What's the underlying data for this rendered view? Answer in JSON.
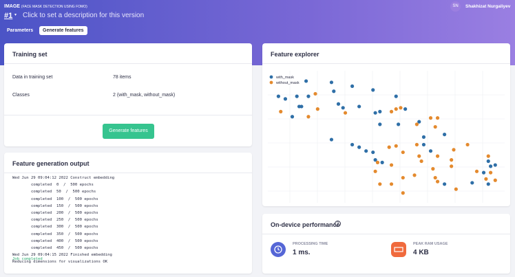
{
  "header": {
    "project": "IMAGE",
    "project_note": "(FACE MASK DETECTION USING FOMO)",
    "version": "#1",
    "description": "Click to set a description for this version",
    "user_initials": "SN",
    "user_name": "Shakhizat Nurgaliyev"
  },
  "tabs": [
    "Parameters",
    "Generate features"
  ],
  "training_set": {
    "title": "Training set",
    "rows": [
      [
        "Data in training set",
        "78 items"
      ],
      [
        "Classes",
        "2 (with_mask, without_mask)"
      ]
    ],
    "button": "Generate features"
  },
  "output": {
    "title": "Feature generation output",
    "lines": [
      "Wed Jun 29 09:04:12 2022 Construct embedding",
      "        completed  0  /  500 epochs",
      "        completed  50  /  500 epochs",
      "        completed  100  /  500 epochs",
      "        completed  150  /  500 epochs",
      "        completed  200  /  500 epochs",
      "        completed  250  /  500 epochs",
      "        completed  300  /  500 epochs",
      "        completed  350  /  500 epochs",
      "        completed  400  /  500 epochs",
      "        completed  450  /  500 epochs",
      "Wed Jun 29 09:04:15 2022 Finished embedding",
      "Reducing dimensions for visualizations OK"
    ],
    "status": "Job completed"
  },
  "feature_explorer": {
    "title": "Feature explorer",
    "chart_data": {
      "type": "scatter",
      "xlim": [
        0,
        100
      ],
      "ylim": [
        0,
        100
      ],
      "series": [
        {
          "name": "with_mask",
          "color": "#2f6fa7",
          "x": [
            16,
            27,
            28,
            36,
            45,
            4,
            7,
            12,
            17,
            13,
            14,
            10,
            30,
            32,
            39,
            46,
            48,
            55,
            59,
            48,
            56,
            65,
            67,
            67,
            70,
            76,
            27,
            36,
            39,
            42,
            46,
            49,
            45,
            95,
            96,
            98,
            93,
            88,
            95,
            76
          ],
          "y": [
            93,
            92,
            85,
            89,
            86,
            81,
            79,
            81,
            81,
            73,
            73,
            65,
            75,
            72,
            73,
            68,
            69,
            81,
            71,
            59,
            59,
            61,
            49,
            43,
            38,
            51,
            47,
            43,
            41,
            38,
            31,
            29,
            37,
            30,
            26,
            27,
            21,
            13,
            12,
            12
          ]
        },
        {
          "name": "without_mask",
          "color": "#e48a2e",
          "x": [
            20,
            21,
            5,
            17,
            33,
            53,
            55,
            57,
            64,
            70,
            73,
            72,
            64,
            52,
            55,
            86,
            80,
            95,
            65,
            66,
            73,
            79,
            79,
            53,
            58,
            47,
            46,
            71,
            72,
            90,
            98,
            96,
            73,
            48,
            53,
            58,
            63,
            58,
            81,
            94
          ],
          "y": [
            83,
            71,
            69,
            65,
            68,
            69,
            71,
            72,
            59,
            64,
            64,
            57,
            43,
            41,
            42,
            43,
            39,
            34,
            34,
            30,
            34,
            31,
            26,
            27,
            37,
            29,
            22,
            24,
            17,
            22,
            15,
            21,
            14,
            12,
            12,
            17,
            19,
            5,
            8,
            16
          ]
        }
      ]
    }
  },
  "performance": {
    "title": "On-device performance",
    "metrics": [
      {
        "label": "PROCESSING TIME",
        "value": "1 ms."
      },
      {
        "label": "PEAK RAM USAGE",
        "value": "4 KB"
      }
    ]
  }
}
